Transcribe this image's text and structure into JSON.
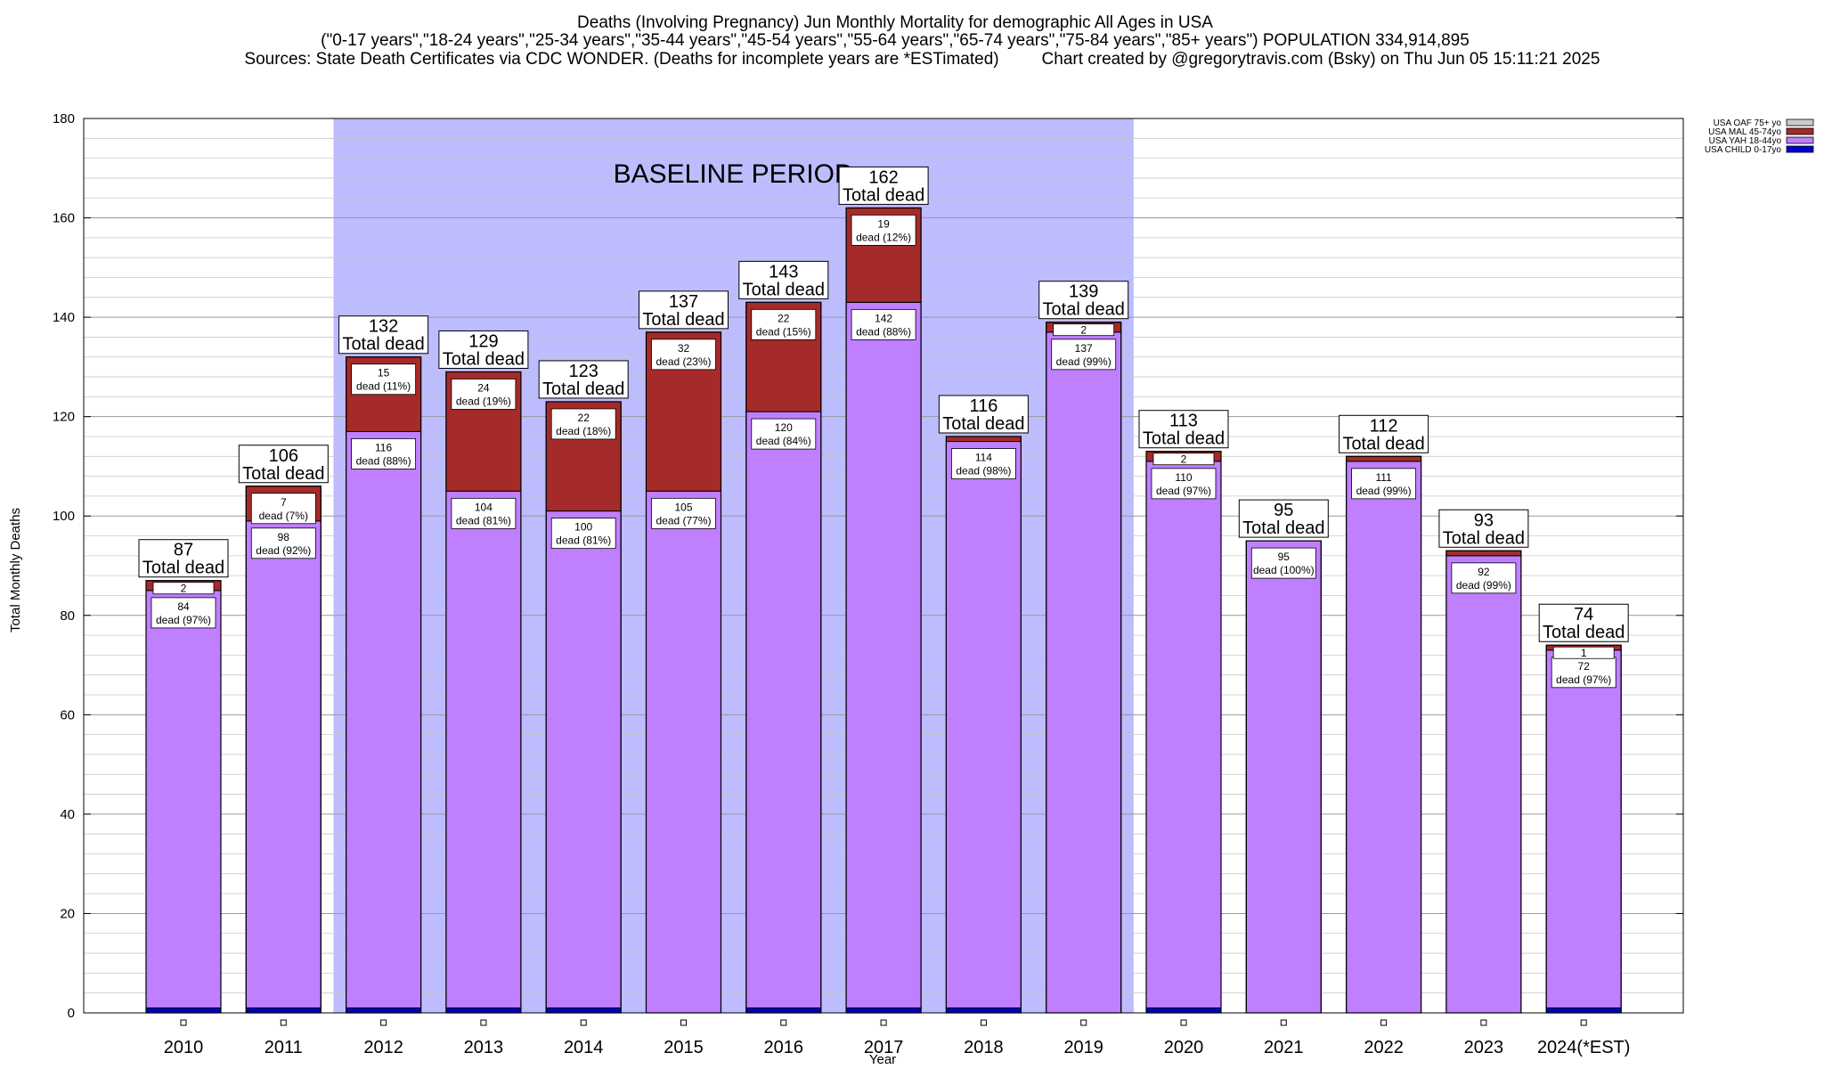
{
  "titles": {
    "line1": "Deaths (Involving Pregnancy) Jun Monthly Mortality for demographic All Ages in USA",
    "line2": "(\"0-17 years\",\"18-24 years\",\"25-34 years\",\"35-44 years\",\"45-54 years\",\"55-64 years\",\"65-74 years\",\"75-84 years\",\"85+ years\") POPULATION 334,914,895",
    "line3_left": "Sources: State Death Certificates via CDC WONDER. (Deaths for incomplete years are *ESTimated)",
    "line3_right": "Chart created by @gregorytravis.com (Bsky) on Thu Jun 05 15:11:21 2025"
  },
  "chart_data": {
    "type": "bar",
    "stacked": true,
    "xlabel": "Year",
    "ylabel": "Total Monthly Deaths",
    "ylim": [
      0,
      180
    ],
    "yticks": [
      0,
      20,
      40,
      60,
      80,
      100,
      120,
      140,
      160,
      180
    ],
    "baseline_label": "BASELINE PERIOD",
    "baseline_range": [
      "2012",
      "2019"
    ],
    "total_label": "Total dead",
    "dead_word": "dead",
    "categories": [
      "2010",
      "2011",
      "2012",
      "2013",
      "2014",
      "2015",
      "2016",
      "2017",
      "2018",
      "2019",
      "2020",
      "2021",
      "2022",
      "2023",
      "2024(*EST)"
    ],
    "totals": [
      87,
      106,
      132,
      129,
      123,
      137,
      143,
      162,
      116,
      139,
      113,
      95,
      112,
      93,
      74
    ],
    "series": [
      {
        "name": "USA CHILD 0-17yo",
        "color": "#0000cc",
        "values": [
          1,
          1,
          1,
          1,
          1,
          0,
          1,
          1,
          1,
          0,
          1,
          0,
          0,
          0,
          1
        ]
      },
      {
        "name": "USA YAH 18-44yo",
        "color": "#bf7fff",
        "values": [
          84,
          98,
          116,
          104,
          100,
          105,
          120,
          142,
          114,
          137,
          110,
          95,
          111,
          92,
          72
        ],
        "labels": [
          "84",
          "98",
          "116",
          "104",
          "100",
          "105",
          "120",
          "142",
          "114",
          "137",
          "110",
          "95",
          "111",
          "92",
          "72"
        ],
        "pcts": [
          "(97%)",
          "(92%)",
          "(88%)",
          "(81%)",
          "(81%)",
          "(77%)",
          "(84%)",
          "(88%)",
          "(98%)",
          "(99%)",
          "(97%)",
          "(100%)",
          "(99%)",
          "(99%)",
          "(97%)"
        ]
      },
      {
        "name": "USA MAL 45-74yo",
        "color": "#a52a2a",
        "values": [
          2,
          7,
          15,
          24,
          22,
          32,
          22,
          19,
          1,
          2,
          2,
          0,
          1,
          1,
          1
        ],
        "labels": [
          "2",
          "7",
          "15",
          "24",
          "22",
          "32",
          "22",
          "19",
          "",
          "2",
          "2",
          "",
          "",
          "",
          "1"
        ],
        "pcts": [
          "",
          "(7%)",
          "(11%)",
          "(19%)",
          "(18%)",
          "(23%)",
          "(15%)",
          "(12%)",
          "",
          "",
          "",
          "",
          "",
          "",
          ""
        ]
      },
      {
        "name": "USA OAF 75+ yo",
        "color": "#cccccc",
        "values": [
          0,
          0,
          0,
          0,
          0,
          0,
          0,
          0,
          0,
          0,
          0,
          0,
          0,
          0,
          0
        ]
      }
    ],
    "legend_order": [
      "USA OAF 75+ yo",
      "USA MAL 45-74yo",
      "USA YAH 18-44yo",
      "USA CHILD 0-17yo"
    ],
    "legend_position": "top-right"
  }
}
